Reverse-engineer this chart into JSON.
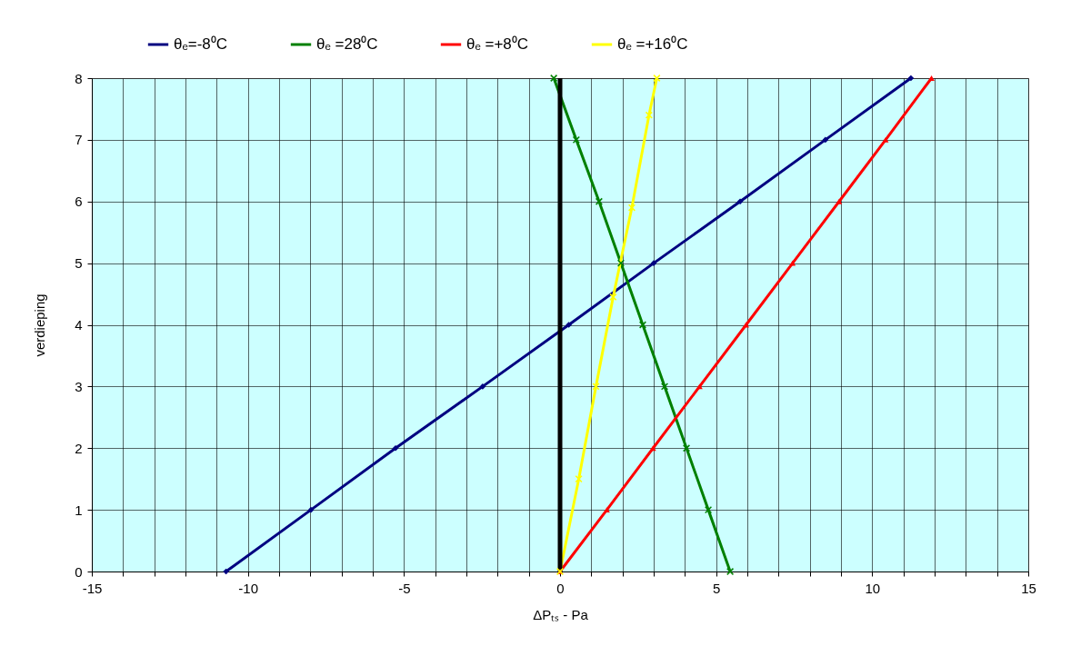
{
  "chart_data": {
    "type": "line",
    "xlabel": "ΔPₜₛ - Pa",
    "ylabel": "verdieping",
    "series": [
      {
        "name": "θₑ=-8⁰C",
        "color": "#000080",
        "marker": "diamond",
        "x": [
          -10.7,
          -7.98,
          -5.27,
          -2.48,
          0.28,
          3.0,
          5.77,
          8.5,
          11.24
        ],
        "values": [
          0,
          1,
          2,
          3,
          4,
          5,
          6,
          7,
          8
        ]
      },
      {
        "name": "θₑ =28⁰C",
        "color": "#008000",
        "marker": "cross",
        "x": [
          5.45,
          4.75,
          4.05,
          3.35,
          2.65,
          1.95,
          1.25,
          0.52,
          -0.2
        ],
        "values": [
          0,
          1,
          2,
          3,
          4,
          5,
          6,
          7,
          8
        ]
      },
      {
        "name": "θₑ =+8⁰C",
        "color": "#ff0000",
        "marker": "triangle",
        "x": [
          0,
          1.5,
          2.98,
          4.47,
          5.96,
          7.45,
          8.94,
          10.43,
          11.9
        ],
        "values": [
          0,
          1,
          2,
          3,
          4,
          5,
          6,
          7,
          8
        ]
      },
      {
        "name": "θₑ =+16⁰C",
        "color": "#ffff00",
        "marker": "cross",
        "x": [
          0,
          0.6,
          1.15,
          1.7,
          2.3,
          2.85,
          3.1
        ],
        "values": [
          0,
          1.5,
          3,
          4.45,
          5.9,
          7.4,
          8
        ]
      }
    ],
    "ref_lines": [
      {
        "axis": "x",
        "value": 0,
        "color": "#000000"
      }
    ],
    "xlim": [
      -15,
      15
    ],
    "xticks": [
      -15,
      {
        "value": -14,
        "label": null
      },
      {
        "value": -13,
        "label": null
      },
      {
        "value": -12,
        "label": null
      },
      {
        "value": -11,
        "label": null
      },
      -10,
      {
        "value": -9,
        "label": null
      },
      {
        "value": -8,
        "label": null
      },
      {
        "value": -7,
        "label": null
      },
      {
        "value": -6,
        "label": null
      },
      -5,
      {
        "value": -4,
        "label": null
      },
      {
        "value": -3,
        "label": null
      },
      {
        "value": -2,
        "label": null
      },
      {
        "value": -1,
        "label": null
      },
      0,
      {
        "value": 1,
        "label": null
      },
      {
        "value": 2,
        "label": null
      },
      {
        "value": 3,
        "label": null
      },
      {
        "value": 4,
        "label": null
      },
      5,
      {
        "value": 6,
        "label": null
      },
      {
        "value": 7,
        "label": null
      },
      {
        "value": 8,
        "label": null
      },
      {
        "value": 9,
        "label": null
      },
      10,
      {
        "value": 11,
        "label": null
      },
      {
        "value": 12,
        "label": null
      },
      {
        "value": 13,
        "label": null
      },
      {
        "value": 14,
        "label": null
      },
      15
    ],
    "ylim": [
      0,
      8
    ],
    "yticks": [
      0,
      1,
      2,
      3,
      4,
      5,
      6,
      7,
      8
    ],
    "grid": true,
    "legend": "top"
  }
}
